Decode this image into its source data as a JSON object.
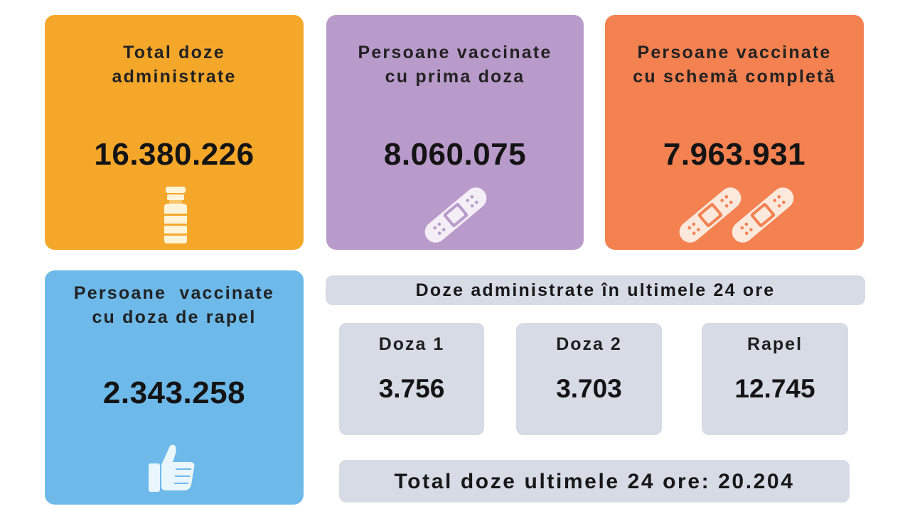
{
  "cards": {
    "total": {
      "title": "Total doze\nadministrate",
      "value": "16.380.226",
      "icon": "vial-icon",
      "color": "#f5a72a"
    },
    "first_dose": {
      "title": "Persoane vaccinate\ncu prima doza",
      "value": "8.060.075",
      "icon": "bandage-icon",
      "color": "#b99bcb"
    },
    "full_scheme": {
      "title": "Persoane vaccinate\ncu schemă completă",
      "value": "7.963.931",
      "icon": "double-bandage-icon",
      "color": "#f48150"
    },
    "booster": {
      "title": "Persoane  vaccinate\ncu doza de rapel",
      "value": "2.343.258",
      "icon": "thumbs-up-icon",
      "color": "#6cb9ea"
    }
  },
  "last_24h": {
    "header": "Doze administrate în ultimele 24 ore",
    "items": [
      {
        "label": "Doza 1",
        "value": "3.756"
      },
      {
        "label": "Doza 2",
        "value": "3.703"
      },
      {
        "label": "Rapel",
        "value": "12.745"
      }
    ],
    "total_label": "Total doze ultimele 24 ore: 20.204"
  }
}
